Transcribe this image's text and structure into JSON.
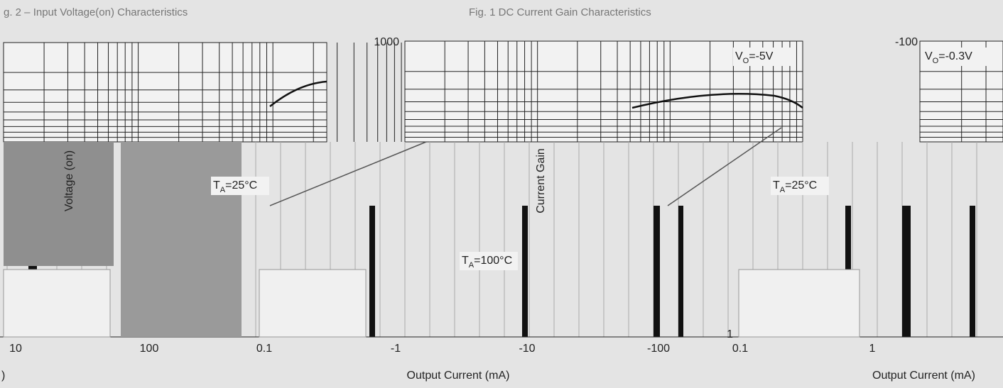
{
  "titles": [
    "g. 2 – Input Voltage(on) Characteristics",
    "Fig. 1 DC Current Gain Characteristics"
  ],
  "y_axis_labels": [
    "Voltage (on)",
    "Current Gain"
  ],
  "y_tick_labels": [
    "1000",
    "-100",
    "1"
  ],
  "bottom_tick_labels": [
    "10",
    "100",
    "0.1",
    "-1",
    "-10",
    "-100",
    "0.1",
    "1"
  ],
  "x_axis_labels": [
    ")",
    "Output Current (mA)",
    "Output Current (mA)"
  ],
  "annotations": [
    {
      "main": "V",
      "sub": "O",
      "rest": "=-5V"
    },
    {
      "main": "V",
      "sub": "O",
      "rest": "=-0.3V"
    },
    {
      "main": "T",
      "sub": "A",
      "rest": "=25°C"
    },
    {
      "main": "T",
      "sub": "A",
      "rest": "=25°C"
    },
    {
      "main": "T",
      "sub": "A",
      "rest": "=100°C"
    }
  ]
}
